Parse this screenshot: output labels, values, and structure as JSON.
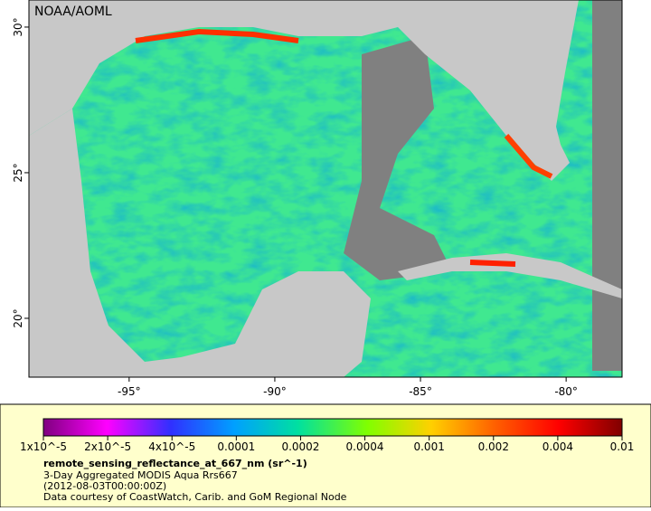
{
  "map": {
    "label": "NOAA/AOML",
    "xlim": [
      -98.44,
      -78.08
    ],
    "ylim": [
      17.98,
      30.93
    ],
    "xticks": [
      {
        "value": -95,
        "label": "-95°"
      },
      {
        "value": -90,
        "label": "-90°"
      },
      {
        "value": -85,
        "label": "-85°"
      },
      {
        "value": -80,
        "label": "-80°"
      }
    ],
    "yticks": [
      {
        "value": 20,
        "label": "20°"
      },
      {
        "value": 25,
        "label": "25°"
      },
      {
        "value": 30,
        "label": "30°"
      }
    ]
  },
  "colorbar": {
    "ticks": [
      {
        "value": 1e-05,
        "label": "1x10^-5"
      },
      {
        "value": 2e-05,
        "label": "2x10^-5"
      },
      {
        "value": 4e-05,
        "label": "4x10^-5"
      },
      0.0001,
      0.0002,
      0.0004,
      0.001,
      0.002,
      0.004,
      0.01
    ]
  },
  "caption": {
    "variable": "remote_sensing_reflectance_at_667_nm (sr^-1)",
    "dataset": "3-Day Aggregated MODIS Aqua Rrs667",
    "time": "(2012-08-03T00:00:00Z)",
    "credit": "Data courtesy of CoastWatch, Carib. and GoM Regional Node"
  }
}
